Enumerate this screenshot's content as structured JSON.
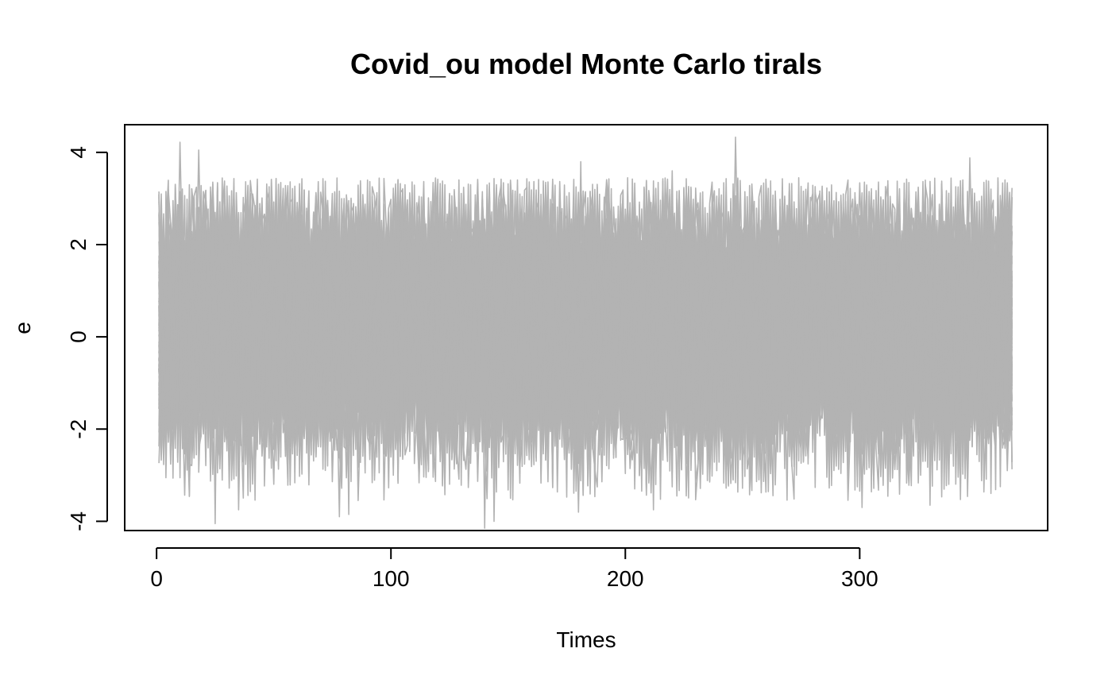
{
  "chart_data": {
    "type": "line",
    "title": "Covid_ou model Monte Carlo tirals",
    "xlabel": "Times",
    "ylabel": "e",
    "xlim": [
      -13.6,
      380.2
    ],
    "ylim": [
      -4.2,
      4.6
    ],
    "x_range": [
      1,
      365
    ],
    "x_ticks": [
      0,
      100,
      200,
      300
    ],
    "x_tick_labels": [
      "0",
      "100",
      "200",
      "300"
    ],
    "y_ticks": [
      -4,
      -2,
      0,
      2,
      4
    ],
    "y_tick_labels": [
      "-4",
      "-2",
      "0",
      "2",
      "4"
    ],
    "grid": false,
    "legend": "none",
    "n_trials": 100,
    "band_typical": [
      -1.8,
      2.2
    ],
    "extremes": {
      "max": [
        [
          10,
          4.22
        ],
        [
          18,
          4.05
        ],
        [
          181,
          3.8
        ],
        [
          220,
          3.6
        ],
        [
          247,
          4.33
        ],
        [
          347,
          3.88
        ]
      ],
      "min": [
        [
          25,
          -4.05
        ],
        [
          35,
          -3.75
        ],
        [
          78,
          -3.9
        ],
        [
          82,
          -3.85
        ],
        [
          140,
          -4.15
        ],
        [
          144,
          -4.0
        ],
        [
          180,
          -3.8
        ],
        [
          212,
          -3.75
        ],
        [
          301,
          -3.7
        ],
        [
          330,
          -3.65
        ],
        [
          366,
          -3.6
        ]
      ]
    },
    "series_color": "#b3b3b3",
    "axis_color": "#000000"
  }
}
